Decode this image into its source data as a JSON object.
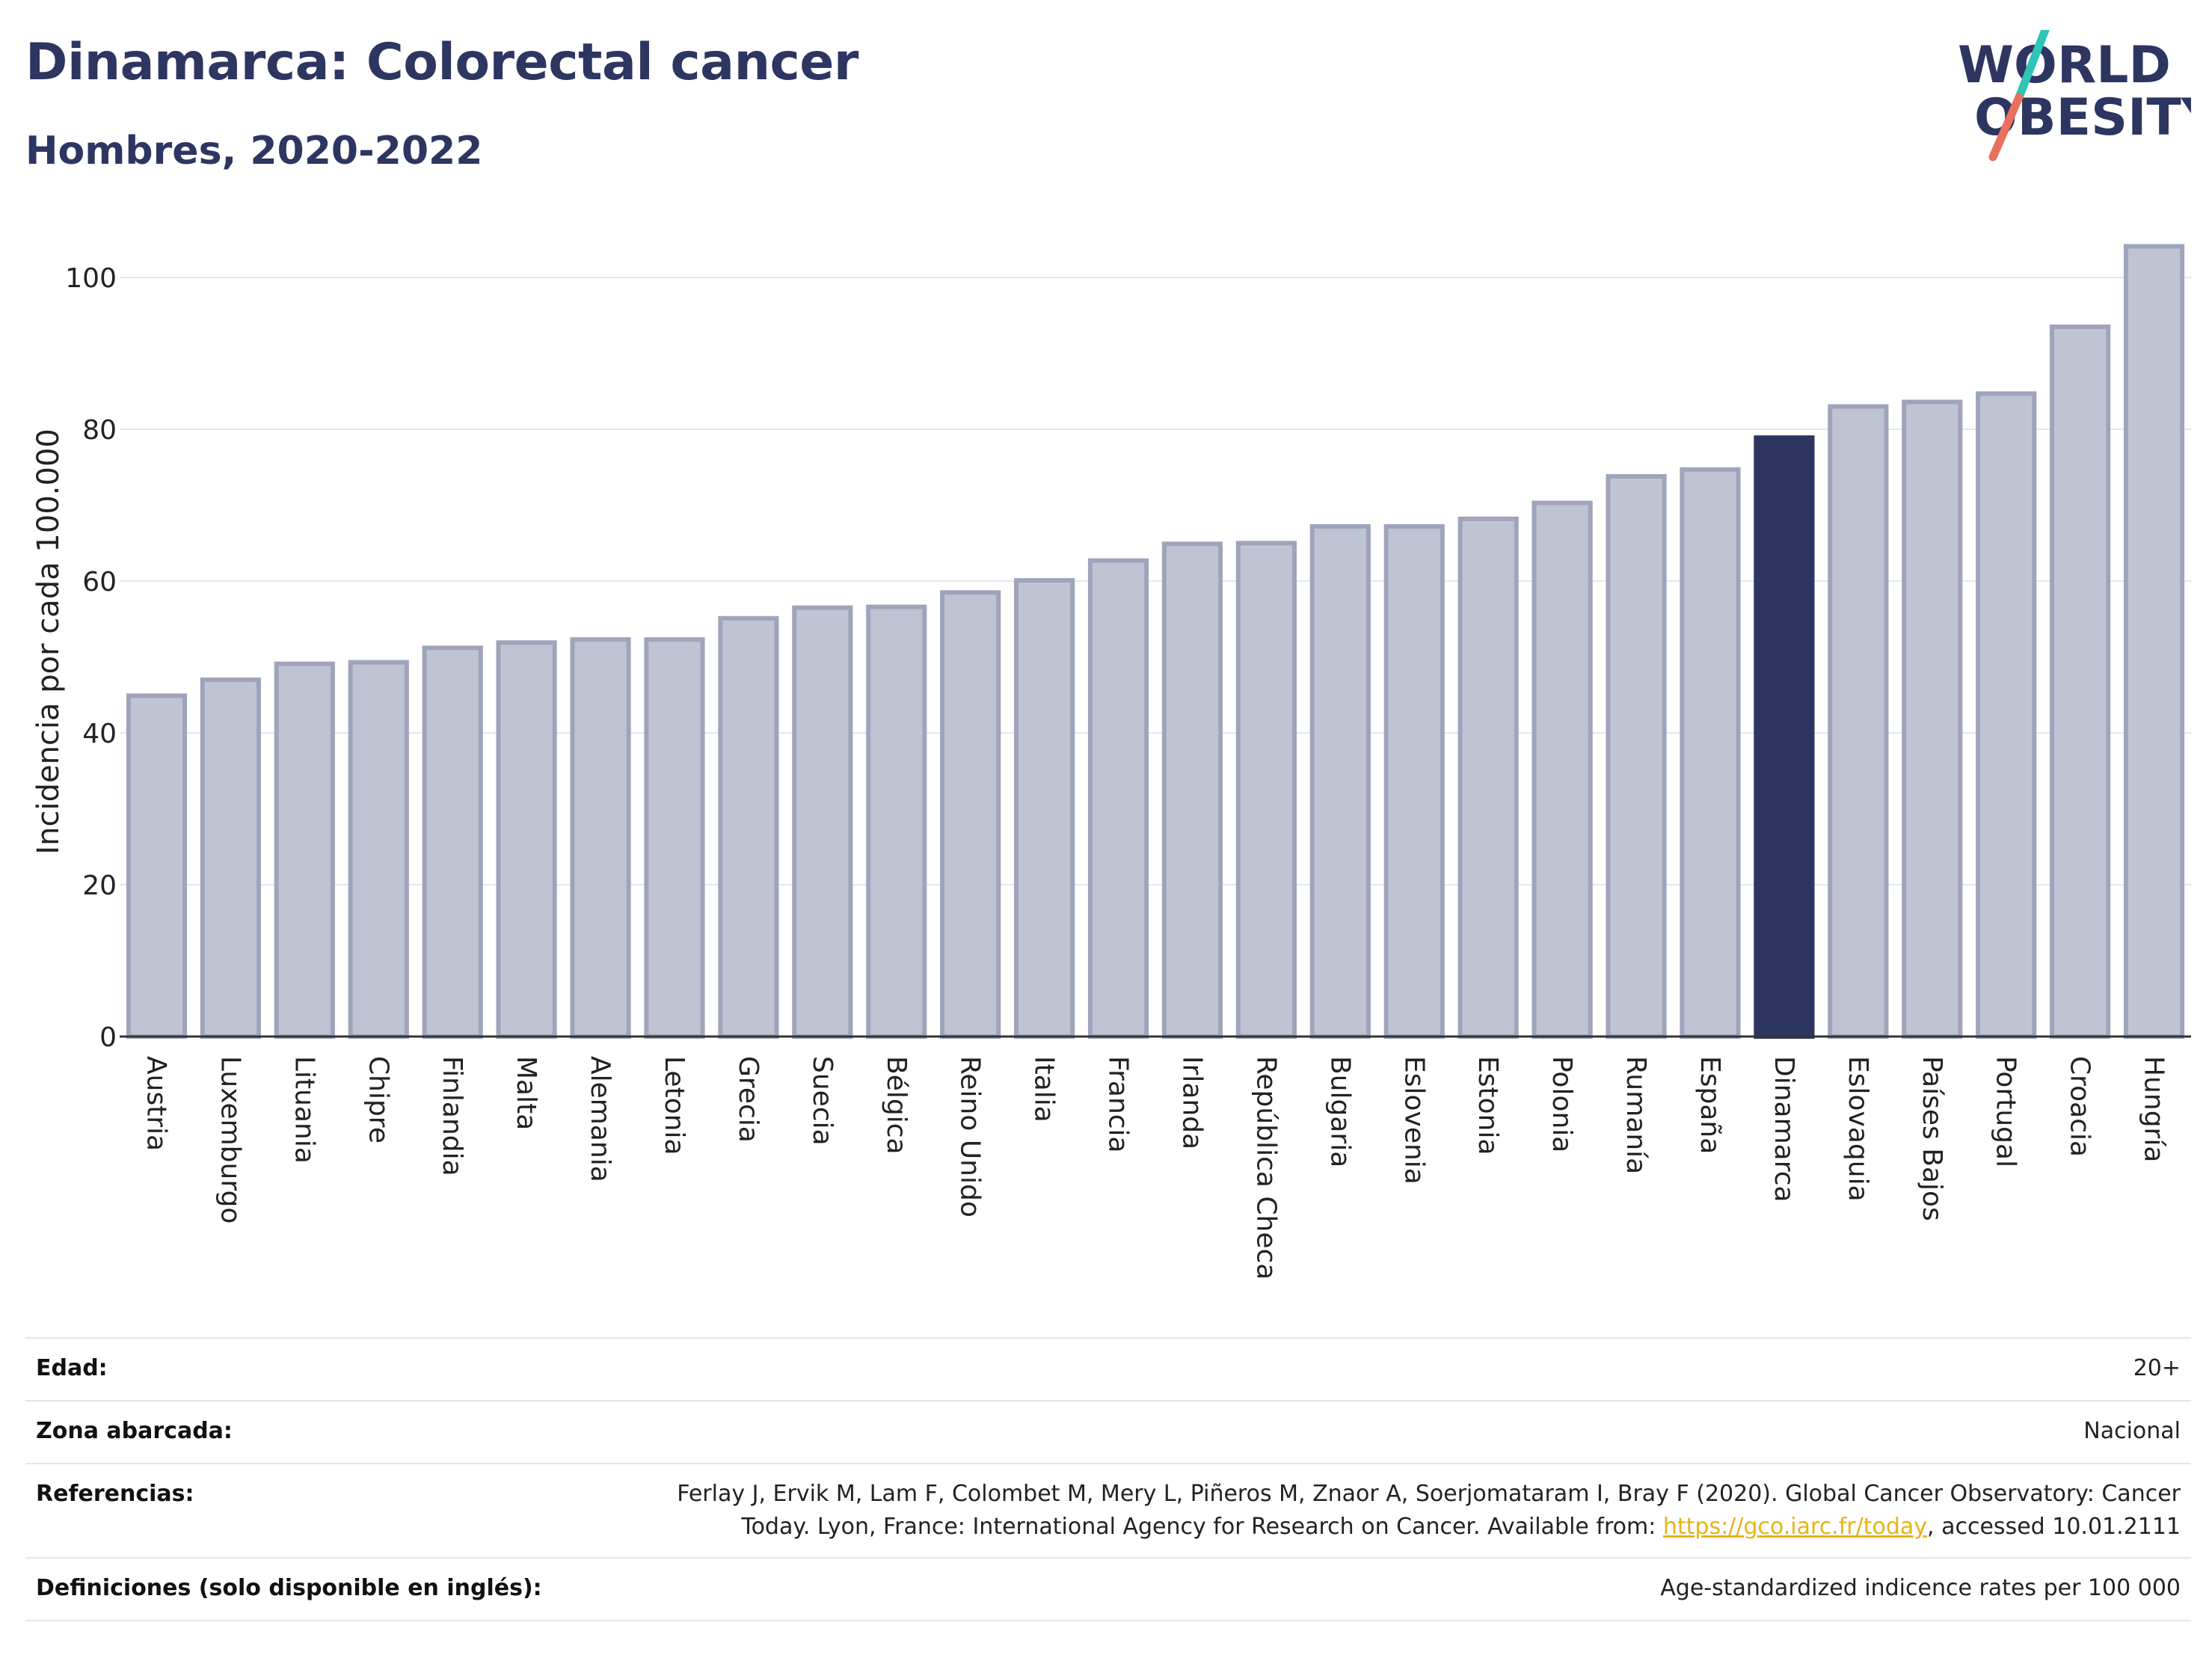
{
  "header": {
    "title": "Dinamarca: Colorectal cancer",
    "subtitle": "Hombres, 2020-2022",
    "logo_line1": "WORLD",
    "logo_line2": "OBESITY"
  },
  "colors": {
    "brand": "#2d3561",
    "bar_default": "#c0c4d2",
    "bar_default_edge": "#9ea4bc",
    "bar_highlight": "#2d3561",
    "logo_teal": "#2ec4b6",
    "logo_coral": "#e8705f",
    "link": "#e5b416"
  },
  "chart_data": {
    "type": "bar",
    "ylabel": "Incidencia por cada 100.000",
    "xlabel": "",
    "ylim": [
      0,
      108
    ],
    "yticks": [
      0,
      20,
      40,
      60,
      80,
      100
    ],
    "grid": true,
    "highlight": "Dinamarca",
    "categories": [
      "Austria",
      "Luxemburgo",
      "Lituania",
      "Chipre",
      "Finlandia",
      "Malta",
      "Alemania",
      "Letonia",
      "Grecia",
      "Suecia",
      "Bélgica",
      "Reino Unido",
      "Italia",
      "Francia",
      "Irlanda",
      "República Checa",
      "Bulgaria",
      "Eslovenia",
      "Estonia",
      "Polonia",
      "Rumanía",
      "España",
      "Dinamarca",
      "Eslovaquia",
      "Países Bajos",
      "Portugal",
      "Croacia",
      "Hungría"
    ],
    "values": [
      44.9,
      47.0,
      49.1,
      49.3,
      51.2,
      51.9,
      52.3,
      52.3,
      55.1,
      56.5,
      56.6,
      58.5,
      60.1,
      62.7,
      64.9,
      65.0,
      67.2,
      67.2,
      68.2,
      70.3,
      73.8,
      74.7,
      78.9,
      83.0,
      83.6,
      84.7,
      93.5,
      104.1
    ]
  },
  "info": {
    "rows": [
      {
        "label": "Edad:",
        "value": "20+"
      },
      {
        "label": "Zona abarcada:",
        "value": "Nacional"
      },
      {
        "label": "Referencias:",
        "value_line1": "Ferlay J, Ervik M, Lam F, Colombet M, Mery L, Piñeros M, Znaor A, Soerjomataram I, Bray F (2020). Global Cancer Observatory: Cancer",
        "value_line2_pre": "Today. Lyon, France: International Agency for Research on Cancer. Available from: ",
        "link": "https://gco.iarc.fr/today",
        "value_line2_post": ", accessed 10.01.2111"
      },
      {
        "label": "Definiciones (solo disponible en inglés):",
        "value": "Age-standardized indicence rates per 100 000"
      }
    ]
  }
}
